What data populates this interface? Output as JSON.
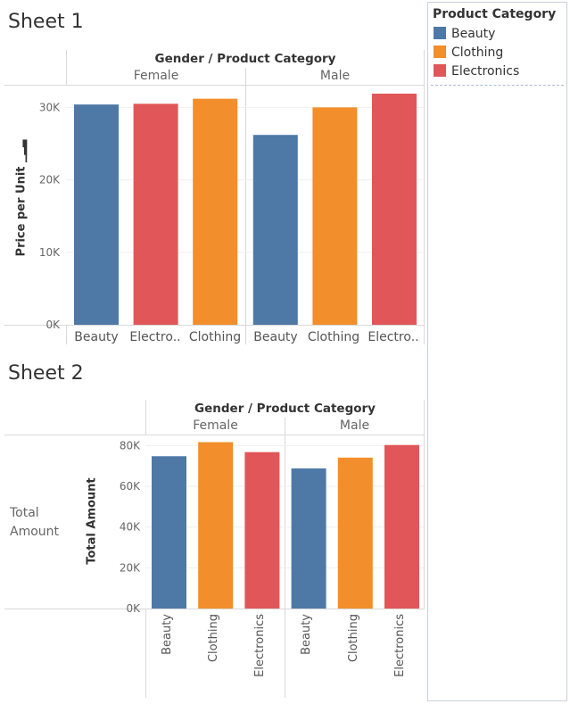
{
  "legend": {
    "title": "Product Category",
    "items": [
      {
        "label": "Beauty",
        "color": "#4e79a7"
      },
      {
        "label": "Clothing",
        "color": "#f28e2b"
      },
      {
        "label": "Electronics",
        "color": "#e15759"
      }
    ]
  },
  "sheet1": {
    "title": "Sheet 1",
    "header": "Gender / Product Category",
    "groups": [
      "Female",
      "Male"
    ],
    "ylabel": "Price per Unit",
    "x_labels": [
      "Beauty",
      "Electro..",
      "Clothing",
      "Beauty",
      "Clothing",
      "Electro.."
    ]
  },
  "sheet2": {
    "title": "Sheet 2",
    "header": "Gender / Product Category",
    "groups": [
      "Female",
      "Male"
    ],
    "ylabel": "Total Amount",
    "row_header": "Total Amount",
    "x_labels": [
      "Beauty",
      "Clothing",
      "Electronics",
      "Beauty",
      "Clothing",
      "Electronics"
    ]
  },
  "chart_data": [
    {
      "type": "bar",
      "title": "Sheet 1",
      "xlabel": "Gender / Product Category",
      "ylabel": "Price per Unit",
      "ylim": [
        0,
        33000
      ],
      "yticks": [
        "0K",
        "10K",
        "20K",
        "30K"
      ],
      "tick_values": [
        0,
        10000,
        20000,
        30000
      ],
      "groups": [
        "Female",
        "Male"
      ],
      "bars": [
        {
          "group": "Female",
          "category": "Beauty",
          "value": 30400,
          "color": "#4e79a7"
        },
        {
          "group": "Female",
          "category": "Electronics",
          "value": 30500,
          "color": "#e15759"
        },
        {
          "group": "Female",
          "category": "Clothing",
          "value": 31200,
          "color": "#f28e2b"
        },
        {
          "group": "Male",
          "category": "Beauty",
          "value": 26200,
          "color": "#4e79a7"
        },
        {
          "group": "Male",
          "category": "Clothing",
          "value": 30000,
          "color": "#f28e2b"
        },
        {
          "group": "Male",
          "category": "Electronics",
          "value": 31900,
          "color": "#e15759"
        }
      ]
    },
    {
      "type": "bar",
      "title": "Sheet 2",
      "xlabel": "Gender / Product Category",
      "ylabel": "Total Amount",
      "ylim": [
        0,
        85000
      ],
      "yticks": [
        "0K",
        "20K",
        "40K",
        "60K",
        "80K"
      ],
      "tick_values": [
        0,
        20000,
        40000,
        60000,
        80000
      ],
      "groups": [
        "Female",
        "Male"
      ],
      "bars": [
        {
          "group": "Female",
          "category": "Beauty",
          "value": 74800,
          "color": "#4e79a7"
        },
        {
          "group": "Female",
          "category": "Clothing",
          "value": 81700,
          "color": "#f28e2b"
        },
        {
          "group": "Female",
          "category": "Electronics",
          "value": 76800,
          "color": "#e15759"
        },
        {
          "group": "Male",
          "category": "Beauty",
          "value": 68800,
          "color": "#4e79a7"
        },
        {
          "group": "Male",
          "category": "Clothing",
          "value": 74100,
          "color": "#f28e2b"
        },
        {
          "group": "Male",
          "category": "Electronics",
          "value": 80300,
          "color": "#e15759"
        }
      ]
    }
  ]
}
